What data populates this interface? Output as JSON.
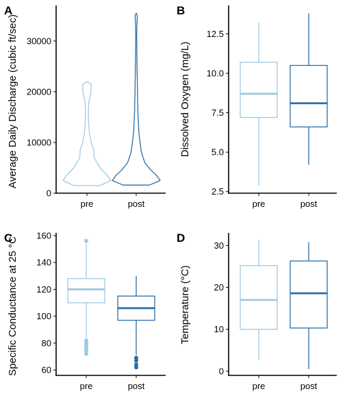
{
  "figure": {
    "title": ""
  },
  "colors": {
    "pre": "#9ecae1",
    "post": "#2b6da8"
  },
  "chart_data": [
    {
      "type": "violin",
      "panel": "A",
      "xlabel": "",
      "ylabel": "Average Daily Discharge (cubic ft/sec)",
      "categories": [
        "pre",
        "post"
      ],
      "ylim": [
        0,
        37000
      ],
      "yticks": [
        0,
        10000,
        20000,
        30000
      ],
      "ytick_labels": [
        "0",
        "10000",
        "20000",
        "30000"
      ],
      "grid": false,
      "legend": "none",
      "series": [
        {
          "category": "pre",
          "min": 1500,
          "max": 22000,
          "profile": [
            [
              1500,
              0.55
            ],
            [
              2500,
              1.0
            ],
            [
              3500,
              0.85
            ],
            [
              5000,
              0.55
            ],
            [
              7000,
              0.3
            ],
            [
              8500,
              0.28
            ],
            [
              10000,
              0.18
            ],
            [
              12000,
              0.1
            ],
            [
              14000,
              0.07
            ],
            [
              16000,
              0.06
            ],
            [
              18000,
              0.08
            ],
            [
              20000,
              0.17
            ],
            [
              21500,
              0.18
            ],
            [
              22000,
              0.0
            ]
          ]
        },
        {
          "category": "post",
          "min": 1600,
          "max": 35500,
          "profile": [
            [
              1600,
              0.55
            ],
            [
              2500,
              1.0
            ],
            [
              3500,
              0.85
            ],
            [
              4500,
              0.62
            ],
            [
              6000,
              0.36
            ],
            [
              8000,
              0.22
            ],
            [
              10000,
              0.16
            ],
            [
              12000,
              0.11
            ],
            [
              14000,
              0.09
            ],
            [
              16000,
              0.07
            ],
            [
              18000,
              0.06
            ],
            [
              20000,
              0.05
            ],
            [
              22000,
              0.045
            ],
            [
              25000,
              0.035
            ],
            [
              28000,
              0.025
            ],
            [
              31000,
              0.02
            ],
            [
              33000,
              0.025
            ],
            [
              35000,
              0.045
            ],
            [
              35500,
              0.0
            ]
          ]
        }
      ]
    },
    {
      "type": "box",
      "panel": "B",
      "xlabel": "",
      "ylabel": "Dissolved Oxygen (mg/L)",
      "categories": [
        "pre",
        "post"
      ],
      "ylim": [
        2.4,
        14.3
      ],
      "yticks": [
        2.5,
        5.0,
        7.5,
        10.0,
        12.5
      ],
      "ytick_labels": [
        "2.5",
        "5.0",
        "7.5",
        "10.0",
        "12.5"
      ],
      "grid": false,
      "legend": "none",
      "series": [
        {
          "category": "pre",
          "whisker_low": 2.9,
          "q1": 7.2,
          "median": 8.7,
          "q3": 10.7,
          "whisker_high": 13.2,
          "outliers": []
        },
        {
          "category": "post",
          "whisker_low": 4.2,
          "q1": 6.6,
          "median": 8.1,
          "q3": 10.5,
          "whisker_high": 13.8,
          "outliers": []
        }
      ]
    },
    {
      "type": "box",
      "panel": "C",
      "xlabel": "",
      "ylabel": "Specific Conductance at 25 °C",
      "categories": [
        "pre",
        "post"
      ],
      "ylim": [
        56,
        162
      ],
      "yticks": [
        60,
        80,
        100,
        120,
        140,
        160
      ],
      "ytick_labels": [
        "60",
        "80",
        "100",
        "120",
        "140",
        "160"
      ],
      "grid": false,
      "legend": "none",
      "series": [
        {
          "category": "pre",
          "whisker_low": 84,
          "q1": 110,
          "median": 120,
          "q3": 128,
          "whisker_high": 154,
          "outliers": [
            156,
            82,
            80,
            78,
            76,
            74,
            72
          ]
        },
        {
          "category": "post",
          "whisker_low": 71,
          "q1": 97,
          "median": 106,
          "q3": 115,
          "whisker_high": 130,
          "outliers": [
            69,
            67,
            64,
            62
          ]
        }
      ]
    },
    {
      "type": "box",
      "panel": "D",
      "xlabel": "",
      "ylabel": "Temperature (°C)",
      "categories": [
        "pre",
        "post"
      ],
      "ylim": [
        -1,
        33
      ],
      "yticks": [
        0,
        10,
        20,
        30
      ],
      "ytick_labels": [
        "0",
        "10",
        "20",
        "30"
      ],
      "grid": false,
      "legend": "none",
      "series": [
        {
          "category": "pre",
          "whisker_low": 2.6,
          "q1": 10.0,
          "median": 17.0,
          "q3": 25.2,
          "whisker_high": 31.4,
          "outliers": []
        },
        {
          "category": "post",
          "whisker_low": 0.5,
          "q1": 10.3,
          "median": 18.6,
          "q3": 26.3,
          "whisker_high": 30.8,
          "outliers": []
        }
      ]
    }
  ]
}
